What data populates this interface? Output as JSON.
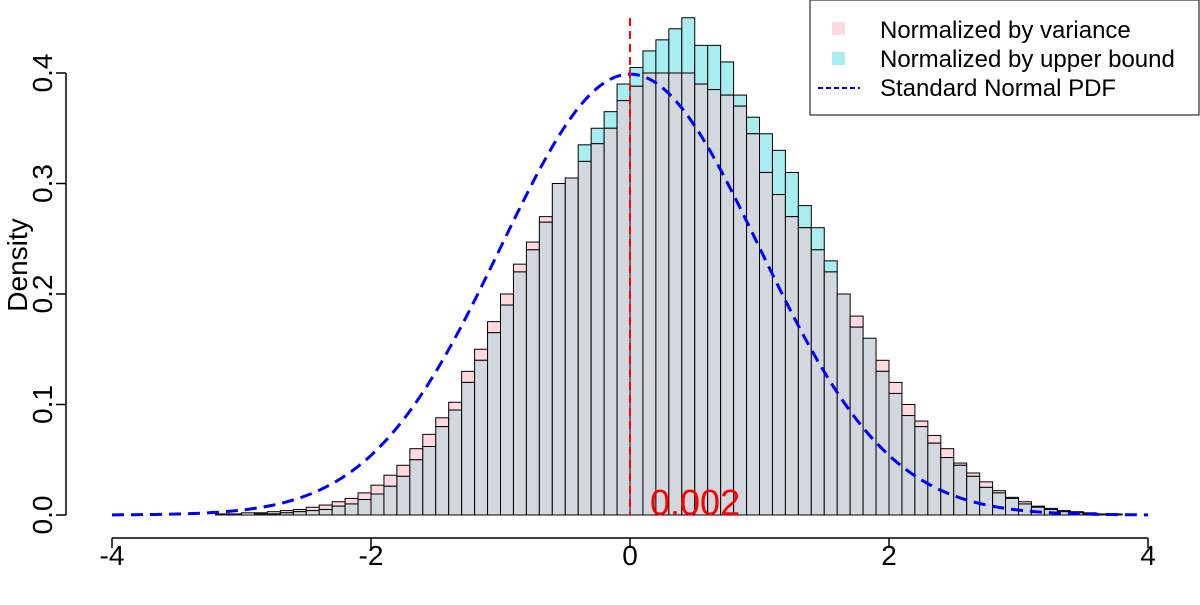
{
  "chart_data": {
    "type": "bar",
    "title": "",
    "xlabel": "",
    "ylabel": "Density",
    "xlim": [
      -4,
      4.2
    ],
    "ylim": [
      0,
      0.45
    ],
    "x_ticks": [
      "-4",
      "-2",
      "0",
      "2",
      "4"
    ],
    "y_ticks": [
      "0.0",
      "0.1",
      "0.2",
      "0.3",
      "0.4"
    ],
    "bin_width": 0.1,
    "bin_start": -3.3,
    "series": [
      {
        "name": "Normalized by variance",
        "color": "#FFD9DE",
        "values": [
          0.0,
          0.001,
          0.001,
          0.002,
          0.002,
          0.003,
          0.004,
          0.005,
          0.007,
          0.009,
          0.012,
          0.015,
          0.02,
          0.027,
          0.036,
          0.045,
          0.06,
          0.073,
          0.088,
          0.102,
          0.13,
          0.15,
          0.175,
          0.2,
          0.227,
          0.247,
          0.27,
          0.3,
          0.305,
          0.32,
          0.336,
          0.35,
          0.375,
          0.388,
          0.4,
          0.4,
          0.4,
          0.4,
          0.39,
          0.385,
          0.38,
          0.37,
          0.345,
          0.31,
          0.29,
          0.27,
          0.26,
          0.24,
          0.22,
          0.2,
          0.18,
          0.16,
          0.14,
          0.12,
          0.1,
          0.085,
          0.072,
          0.06,
          0.047,
          0.038,
          0.03,
          0.022,
          0.016,
          0.012,
          0.008,
          0.006,
          0.004,
          0.003,
          0.002,
          0.001,
          0.001,
          0.0,
          0.0,
          0.0,
          0.0
        ]
      },
      {
        "name": "Normalized by upper bound",
        "color": "#A8EEF0",
        "values": [
          0.0,
          0.0,
          0.0,
          0.0,
          0.001,
          0.001,
          0.002,
          0.003,
          0.004,
          0.005,
          0.008,
          0.01,
          0.014,
          0.019,
          0.026,
          0.035,
          0.05,
          0.062,
          0.08,
          0.095,
          0.12,
          0.14,
          0.165,
          0.19,
          0.22,
          0.24,
          0.265,
          0.3,
          0.305,
          0.335,
          0.35,
          0.365,
          0.39,
          0.405,
          0.42,
          0.43,
          0.44,
          0.45,
          0.425,
          0.425,
          0.41,
          0.38,
          0.36,
          0.345,
          0.33,
          0.31,
          0.28,
          0.26,
          0.23,
          0.2,
          0.17,
          0.16,
          0.13,
          0.11,
          0.09,
          0.08,
          0.065,
          0.052,
          0.045,
          0.035,
          0.025,
          0.02,
          0.015,
          0.01,
          0.007,
          0.005,
          0.003,
          0.002,
          0.001,
          0.001,
          0.0,
          0.0,
          0.0,
          0.0,
          0.0
        ]
      },
      {
        "name": "Standard Normal PDF",
        "color": "#0000FF",
        "type": "line",
        "style": "dashed",
        "function": "standard normal density",
        "x_range": [
          -4,
          4
        ]
      }
    ],
    "overlap_color": "#D3D8DF",
    "vline": {
      "x": 0,
      "color": "#FF0000",
      "style": "dashed"
    },
    "annotation": {
      "text": "0.002",
      "color": "#FF0000"
    },
    "legend": {
      "position": "top-right"
    }
  }
}
